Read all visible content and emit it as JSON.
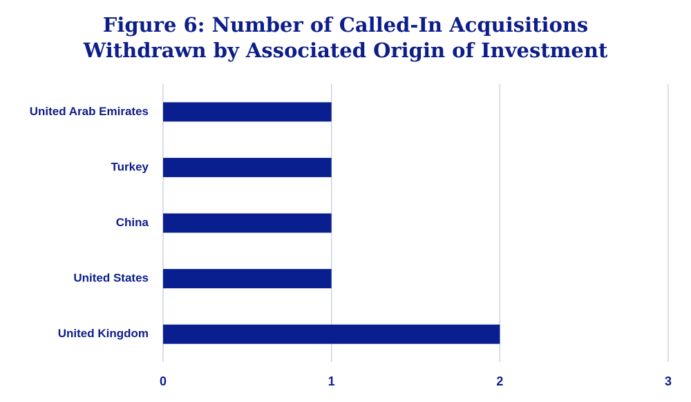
{
  "chart_data": {
    "type": "bar",
    "orientation": "horizontal",
    "title": [
      "Figure 6: Number of Called-In Acquisitions",
      "Withdrawn by Associated Origin of Investment"
    ],
    "categories": [
      "United Arab Emirates",
      "Turkey",
      "China",
      "United States",
      "United Kingdom"
    ],
    "values": [
      1,
      1,
      1,
      1,
      2
    ],
    "color": "#0a1f8f",
    "xlim": [
      0,
      3
    ],
    "xticks": [
      0,
      1,
      2,
      3
    ],
    "grid": true
  }
}
